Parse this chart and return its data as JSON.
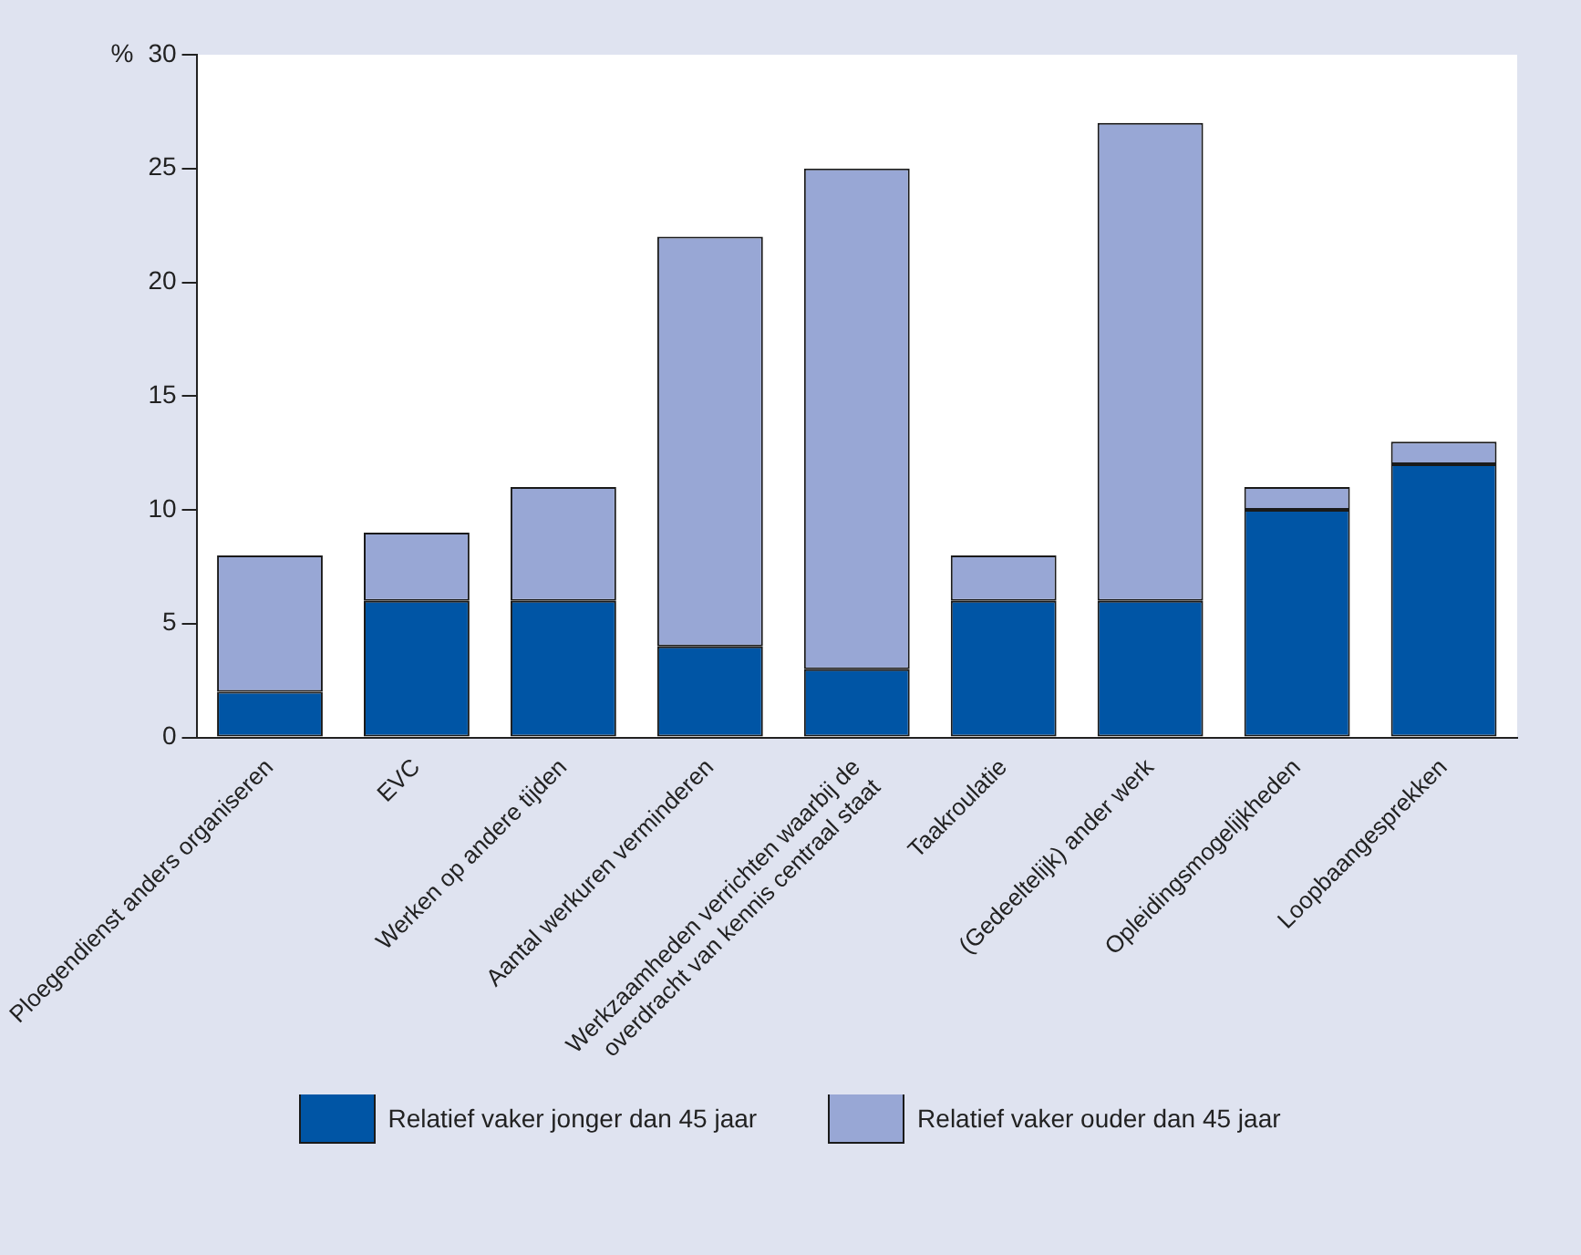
{
  "chart_data": {
    "type": "bar",
    "stacked": true,
    "ylabel": "%",
    "categories": [
      "Ploegendienst anders organiseren",
      "EVC",
      "Werken op andere tijden",
      "Aantal werkuren verminderen",
      "Werkzaamheden verrichten waarbij de overdracht van kennis centraal staat",
      "Taakroulatie",
      "(Gedeeltelijk) ander werk",
      "Opleidingsmogelijkheden",
      "Loopbaangesprekken"
    ],
    "series": [
      {
        "name": "Relatief vaker  jonger dan 45 jaar",
        "color": "#0055a5",
        "values": [
          2,
          6,
          6,
          4,
          3,
          6,
          6,
          10,
          12
        ]
      },
      {
        "name": "Relatief vaker  ouder dan 45 jaar",
        "color": "#98a7d5",
        "values": [
          6,
          3,
          5,
          18,
          22,
          2,
          21,
          1,
          1
        ]
      }
    ],
    "ylim": [
      0,
      30
    ],
    "yticks": [
      0,
      5,
      10,
      15,
      20,
      25,
      30
    ],
    "grid": false,
    "legend": "bottom"
  }
}
